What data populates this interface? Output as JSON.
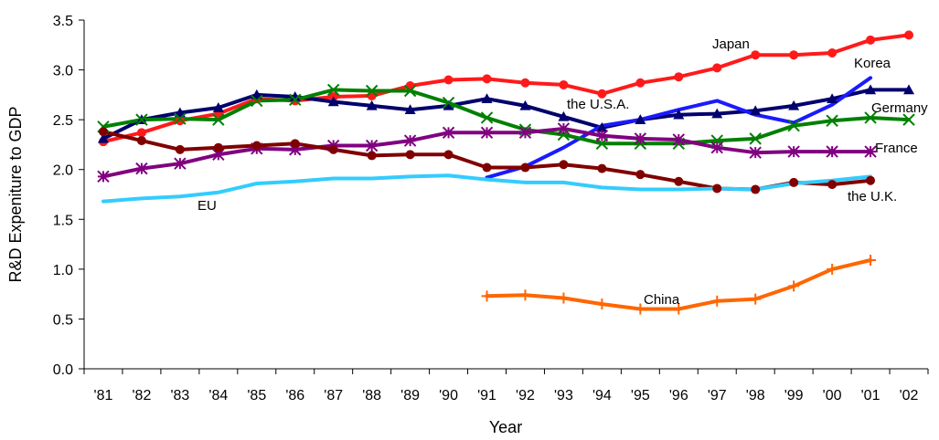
{
  "chart_data": {
    "type": "line",
    "title": "",
    "xlabel": "Year",
    "ylabel": "R&D Expeniture to GDP",
    "ylim": [
      0,
      3.5
    ],
    "yticks": [
      "0.0",
      "0.5",
      "1.0",
      "1.5",
      "2.0",
      "2.5",
      "3.0",
      "3.5"
    ],
    "categories": [
      "'81",
      "'82",
      "'83",
      "'84",
      "'85",
      "'86",
      "'87",
      "'88",
      "'89",
      "'90",
      "'91",
      "'92",
      "'93",
      "'94",
      "'95",
      "'96",
      "'97",
      "'98",
      "'99",
      "'00",
      "'01",
      "'02"
    ],
    "grid": false,
    "legend": "none",
    "series": [
      {
        "name": "Japan",
        "color": "#ff1a1a",
        "marker": "circle",
        "values": [
          2.28,
          2.37,
          2.49,
          2.56,
          2.71,
          2.69,
          2.73,
          2.74,
          2.84,
          2.9,
          2.91,
          2.87,
          2.85,
          2.76,
          2.87,
          2.93,
          3.02,
          3.15,
          3.15,
          3.17,
          3.3,
          3.35
        ]
      },
      {
        "name": "the U.S.A.",
        "color": "#00006e",
        "marker": "triangle",
        "values": [
          2.31,
          2.5,
          2.57,
          2.62,
          2.75,
          2.73,
          2.68,
          2.64,
          2.6,
          2.64,
          2.71,
          2.64,
          2.53,
          2.42,
          2.5,
          2.55,
          2.56,
          2.59,
          2.64,
          2.71,
          2.8,
          2.8
        ]
      },
      {
        "name": "Korea",
        "color": "#1a1aff",
        "marker": "none",
        "values": [
          null,
          null,
          null,
          null,
          null,
          null,
          null,
          null,
          null,
          null,
          1.92,
          2.03,
          2.22,
          2.44,
          2.5,
          2.6,
          2.69,
          2.55,
          2.47,
          2.65,
          2.92,
          null
        ]
      },
      {
        "name": "Germany",
        "color": "#008000",
        "marker": "x",
        "values": [
          2.43,
          2.5,
          2.51,
          2.5,
          2.69,
          2.7,
          2.8,
          2.79,
          2.79,
          2.67,
          2.52,
          2.4,
          2.35,
          2.26,
          2.26,
          2.26,
          2.29,
          2.31,
          2.44,
          2.49,
          2.52,
          2.5
        ]
      },
      {
        "name": "France",
        "color": "#800080",
        "marker": "star",
        "values": [
          1.93,
          2.01,
          2.06,
          2.15,
          2.21,
          2.2,
          2.24,
          2.24,
          2.29,
          2.37,
          2.37,
          2.37,
          2.41,
          2.34,
          2.31,
          2.3,
          2.22,
          2.17,
          2.18,
          2.18,
          2.18,
          null
        ]
      },
      {
        "name": "the U.K.",
        "color": "#800000",
        "marker": "circle",
        "values": [
          2.38,
          2.29,
          2.2,
          2.22,
          2.24,
          2.26,
          2.2,
          2.14,
          2.15,
          2.15,
          2.02,
          2.02,
          2.05,
          2.01,
          1.95,
          1.88,
          1.81,
          1.8,
          1.87,
          1.85,
          1.89,
          null
        ]
      },
      {
        "name": "EU",
        "color": "#33ccff",
        "marker": "none",
        "values": [
          1.68,
          1.71,
          1.73,
          1.77,
          1.86,
          1.88,
          1.91,
          1.91,
          1.93,
          1.94,
          1.9,
          1.87,
          1.87,
          1.82,
          1.8,
          1.8,
          1.81,
          1.8,
          1.86,
          1.89,
          1.93,
          null
        ]
      },
      {
        "name": "China",
        "color": "#ff6600",
        "marker": "plus",
        "values": [
          null,
          null,
          null,
          null,
          null,
          null,
          null,
          null,
          null,
          null,
          0.73,
          0.74,
          0.71,
          0.65,
          0.6,
          0.6,
          0.68,
          0.7,
          0.83,
          1.0,
          1.09,
          null
        ]
      }
    ]
  }
}
